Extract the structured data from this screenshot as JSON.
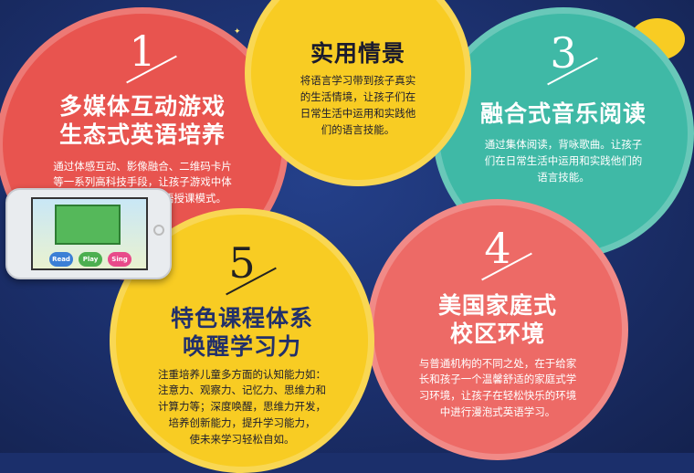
{
  "colors": {
    "background": "#1b2f6b",
    "red": "#e8544f",
    "yellow": "#f8cc23",
    "teal": "#3fb9a6",
    "coral": "#ed6a66"
  },
  "features": [
    {
      "number": "1",
      "title_line1": "多媒体互动游戏",
      "title_line2": "生态式英语培养",
      "desc": [
        "通过体感互动、影像融合、二维码卡片",
        "等一系列高科技手段，让孩子游戏中体",
        "验学习，最具特色的英语授课模式。"
      ]
    },
    {
      "number": "",
      "title_line1": "实用情景",
      "desc": [
        "将语言学习带到孩子真实",
        "的生活情境，让孩子们在",
        "日常生活中运用和实践他",
        "们的语言技能。"
      ]
    },
    {
      "number": "3",
      "title_line1": "融合式音乐阅读",
      "desc": [
        "通过集体阅读，背咏歌曲。让孩子",
        "们在日常生活中运用和实践他们的",
        "语言技能。"
      ]
    },
    {
      "number": "4",
      "title_line1": "美国家庭式",
      "title_line2": "校区环境",
      "desc": [
        "与普通机构的不同之处，在于给家",
        "长和孩子一个温馨舒适的家庭式学",
        "习环境，让孩子在轻松快乐的环境",
        "中进行漫泡式英语学习。"
      ]
    },
    {
      "number": "5",
      "title_line1": "特色课程体系",
      "title_line2": "唤醒学习力",
      "desc": [
        "注重培养儿童多方面的认知能力如：",
        "注意力、观察力、记忆力、思维力和",
        "计算力等；深度唤醒，思维力开发，",
        "培养创新能力，提升学习能力，",
        "使未来学习轻松自如。"
      ]
    }
  ],
  "phone": {
    "buttons": [
      "Read",
      "Play",
      "Sing"
    ],
    "button_colors": [
      "#3a7fd6",
      "#4caf50",
      "#e84a8a"
    ]
  },
  "icons": [
    "sparkle-icon",
    "music-note-shape"
  ]
}
